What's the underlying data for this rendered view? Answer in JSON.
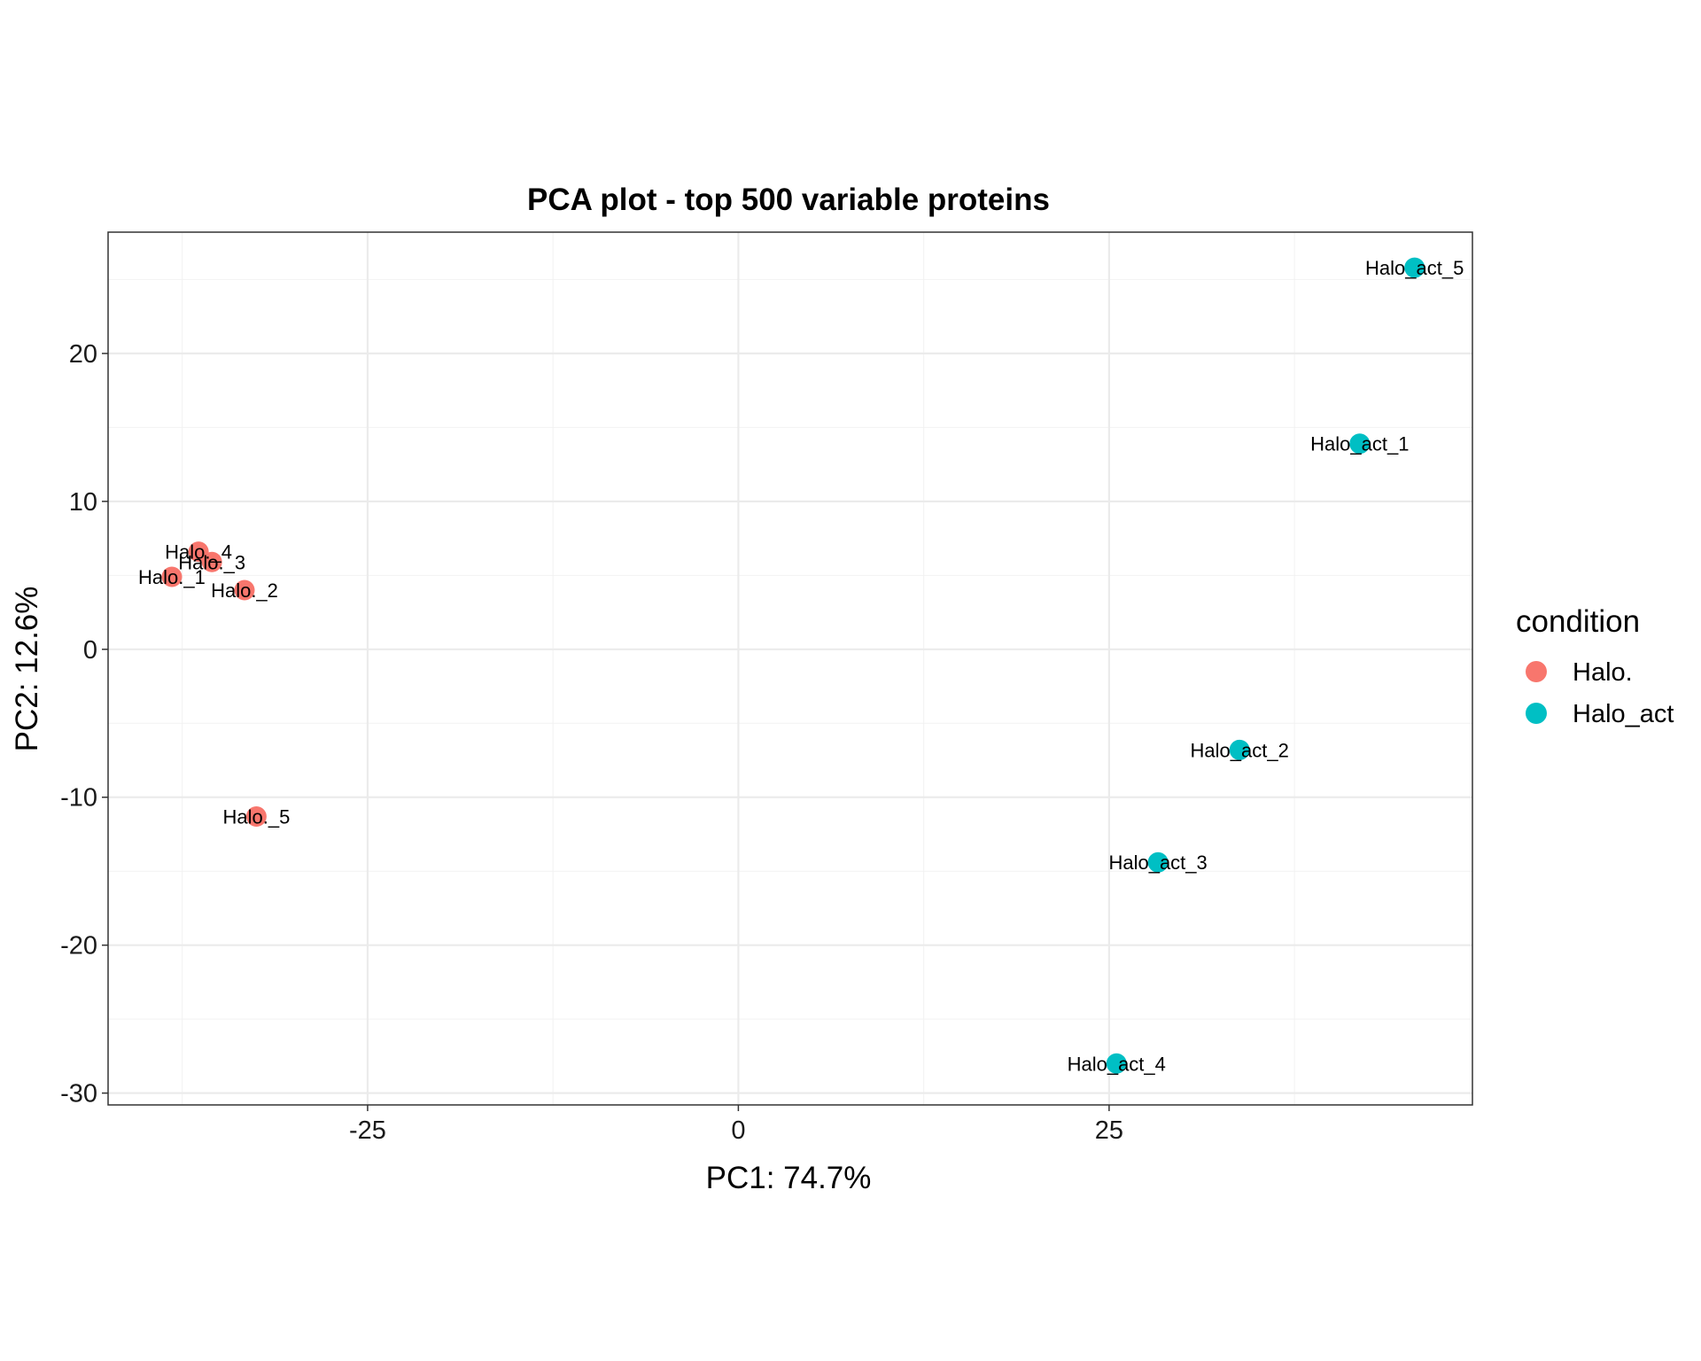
{
  "chart_data": {
    "type": "scatter",
    "title": "PCA plot - top 500 variable proteins",
    "xlabel": "PC1: 74.7%",
    "ylabel": "PC2: 12.6%",
    "xlim": [
      -42.5,
      49.5
    ],
    "ylim": [
      -30.8,
      28.2
    ],
    "x_ticks": [
      -25,
      0,
      25
    ],
    "y_ticks": [
      -30,
      -20,
      -10,
      0,
      10,
      20
    ],
    "grid": true,
    "legend": {
      "title": "condition",
      "placement": "right",
      "entries": [
        {
          "label": "Halo.",
          "color": "#F8766D"
        },
        {
          "label": "Halo_act",
          "color": "#00BFC4"
        }
      ]
    },
    "series": [
      {
        "name": "Halo.",
        "color": "#F8766D",
        "points": [
          {
            "label": "Halo._1",
            "x": -38.2,
            "y": 4.9
          },
          {
            "label": "Halo._2",
            "x": -33.3,
            "y": 4.0
          },
          {
            "label": "Halo._3",
            "x": -35.5,
            "y": 5.9
          },
          {
            "label": "Halo._4",
            "x": -36.4,
            "y": 6.6
          },
          {
            "label": "Halo._5",
            "x": -32.5,
            "y": -11.3
          }
        ]
      },
      {
        "name": "Halo_act",
        "color": "#00BFC4",
        "points": [
          {
            "label": "Halo_act_1",
            "x": 41.9,
            "y": 13.9
          },
          {
            "label": "Halo_act_2",
            "x": 33.8,
            "y": -6.8
          },
          {
            "label": "Halo_act_3",
            "x": 28.3,
            "y": -14.4
          },
          {
            "label": "Halo_act_4",
            "x": 25.5,
            "y": -28.0
          },
          {
            "label": "Halo_act_5",
            "x": 45.6,
            "y": 25.8
          }
        ]
      }
    ]
  }
}
